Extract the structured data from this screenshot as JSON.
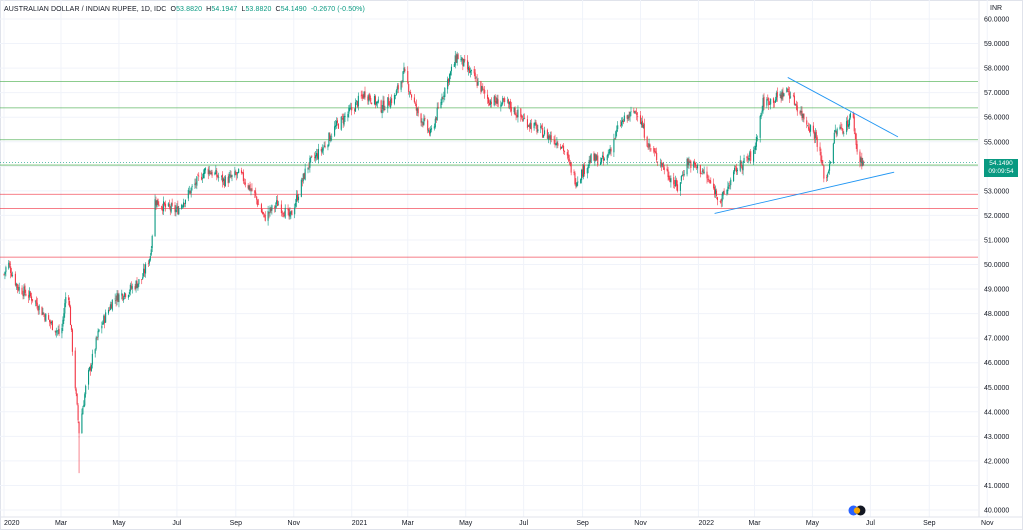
{
  "legend": {
    "symbol": "AUSTRALIAN DOLLAR / INDIAN RUPEE, 1D, IDC",
    "o_label": "O",
    "o_value": "53.8820",
    "h_label": "H",
    "h_value": "54.1947",
    "l_label": "L",
    "l_value": "53.8820",
    "c_label": "C",
    "c_value": "54.1490",
    "change": "-0.2670 (-0.50%)"
  },
  "currency_label": "INR",
  "last_price": {
    "value": "54.1490",
    "countdown": "09:09:54",
    "color": "#089981"
  },
  "colors": {
    "up": "#089981",
    "down": "#f23645",
    "green_level": "#4caf50",
    "red_level": "#f23645",
    "trendline": "#2196f3"
  },
  "icons": {
    "logo": "tradingview-logo-icon"
  },
  "chart_data": {
    "type": "candlestick",
    "title": "AUSTRALIAN DOLLAR / INDIAN RUPEE, 1D, IDC",
    "ylim": [
      40.0,
      60.0
    ],
    "y_ticks": [
      "60.0000",
      "59.0000",
      "58.0000",
      "57.0000",
      "56.0000",
      "55.0000",
      "54.0000",
      "53.0000",
      "52.0000",
      "51.0000",
      "50.0000",
      "49.0000",
      "48.0000",
      "47.0000",
      "46.0000",
      "45.0000",
      "44.0000",
      "43.0000",
      "42.0000",
      "41.0000",
      "40.0000"
    ],
    "x_ticks": [
      "2020",
      "Mar",
      "May",
      "Jul",
      "Sep",
      "Nov",
      "2021",
      "Mar",
      "May",
      "Jul",
      "Sep",
      "Nov",
      "2022",
      "Mar",
      "May",
      "Jul",
      "Sep",
      "Nov"
    ],
    "price_path": [
      [
        "2020-01-01",
        49.6
      ],
      [
        "2020-01-05",
        50.1
      ],
      [
        "2020-01-15",
        49.1
      ],
      [
        "2020-02-01",
        48.6
      ],
      [
        "2020-02-15",
        47.8
      ],
      [
        "2020-03-01",
        47.1
      ],
      [
        "2020-03-08",
        49.3
      ],
      [
        "2020-03-15",
        45.5
      ],
      [
        "2020-03-20",
        43.2
      ],
      [
        "2020-03-28",
        45.2
      ],
      [
        "2020-04-10",
        47.3
      ],
      [
        "2020-04-25",
        48.6
      ],
      [
        "2020-05-10",
        48.9
      ],
      [
        "2020-05-25",
        49.4
      ],
      [
        "2020-06-03",
        50.4
      ],
      [
        "2020-06-08",
        52.6
      ],
      [
        "2020-06-20",
        52.3
      ],
      [
        "2020-07-01",
        52.2
      ],
      [
        "2020-07-15",
        53.0
      ],
      [
        "2020-08-01",
        53.9
      ],
      [
        "2020-08-20",
        53.4
      ],
      [
        "2020-09-05",
        53.7
      ],
      [
        "2020-09-20",
        52.9
      ],
      [
        "2020-10-01",
        51.9
      ],
      [
        "2020-10-15",
        52.5
      ],
      [
        "2020-10-28",
        51.9
      ],
      [
        "2020-11-05",
        52.8
      ],
      [
        "2020-11-15",
        54.0
      ],
      [
        "2020-12-01",
        54.7
      ],
      [
        "2020-12-15",
        55.6
      ],
      [
        "2021-01-01",
        56.3
      ],
      [
        "2021-01-15",
        57.0
      ],
      [
        "2021-02-01",
        56.4
      ],
      [
        "2021-02-15",
        56.8
      ],
      [
        "2021-02-25",
        57.8
      ],
      [
        "2021-03-10",
        56.3
      ],
      [
        "2021-03-25",
        55.3
      ],
      [
        "2021-04-10",
        57.3
      ],
      [
        "2021-04-22",
        58.5
      ],
      [
        "2021-05-10",
        57.6
      ],
      [
        "2021-05-25",
        56.7
      ],
      [
        "2021-06-15",
        56.5
      ],
      [
        "2021-07-01",
        55.9
      ],
      [
        "2021-07-20",
        55.4
      ],
      [
        "2021-08-10",
        54.9
      ],
      [
        "2021-08-25",
        53.4
      ],
      [
        "2021-09-10",
        54.3
      ],
      [
        "2021-09-25",
        54.2
      ],
      [
        "2021-10-10",
        55.7
      ],
      [
        "2021-10-28",
        56.3
      ],
      [
        "2021-11-10",
        54.8
      ],
      [
        "2021-11-25",
        54.0
      ],
      [
        "2021-12-10",
        53.1
      ],
      [
        "2021-12-20",
        54.2
      ],
      [
        "2022-01-05",
        53.8
      ],
      [
        "2022-01-25",
        52.6
      ],
      [
        "2022-02-10",
        53.9
      ],
      [
        "2022-02-28",
        54.5
      ],
      [
        "2022-03-10",
        56.6
      ],
      [
        "2022-03-25",
        56.8
      ],
      [
        "2022-04-05",
        57.1
      ],
      [
        "2022-04-20",
        56.1
      ],
      [
        "2022-05-05",
        55.2
      ],
      [
        "2022-05-15",
        53.3
      ],
      [
        "2022-05-25",
        55.4
      ],
      [
        "2022-06-05",
        55.6
      ],
      [
        "2022-06-12",
        56.2
      ],
      [
        "2022-06-18",
        54.3
      ],
      [
        "2022-06-26",
        54.15
      ]
    ],
    "horizontal_levels": [
      {
        "price": 57.45,
        "color": "green"
      },
      {
        "price": 56.38,
        "color": "green"
      },
      {
        "price": 55.08,
        "color": "green"
      },
      {
        "price": 54.05,
        "color": "green"
      },
      {
        "price": 52.86,
        "color": "red"
      },
      {
        "price": 52.28,
        "color": "red"
      },
      {
        "price": 50.3,
        "color": "red"
      }
    ],
    "trendlines": [
      {
        "from": [
          "2022-01-18",
          52.08
        ],
        "to": [
          "2022-07-26",
          53.76
        ]
      },
      {
        "from": [
          "2022-04-05",
          57.62
        ],
        "to": [
          "2022-07-30",
          55.2
        ]
      }
    ]
  }
}
